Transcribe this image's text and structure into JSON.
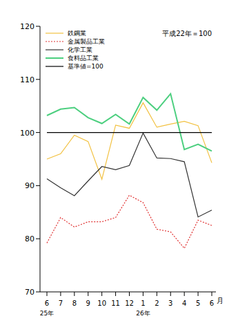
{
  "chart_data": {
    "type": "line",
    "subtitle": "平成22年＝100",
    "x_label": "月",
    "categories": [
      "6",
      "7",
      "8",
      "9",
      "10",
      "11",
      "12",
      "1",
      "2",
      "3",
      "4",
      "5",
      "6"
    ],
    "x_sublabels": [
      "25年",
      null,
      null,
      null,
      null,
      null,
      null,
      "26年",
      null,
      null,
      null,
      null,
      null
    ],
    "ylim": [
      70,
      120
    ],
    "yticks": [
      70,
      80,
      90,
      100,
      110,
      120
    ],
    "grid": false,
    "legend": "top-left",
    "series": [
      {
        "name": "鉄鋼業",
        "color": "#f2c140",
        "line_style": "solid",
        "values": [
          95.0,
          96.0,
          99.5,
          98.3,
          91.2,
          101.4,
          100.8,
          105.6,
          101.0,
          101.6,
          102.1,
          101.3,
          94.3
        ]
      },
      {
        "name": "金属製品工業",
        "color": "#e03030",
        "line_style": "dotted",
        "values": [
          79.2,
          84.0,
          82.2,
          83.2,
          83.2,
          84.0,
          88.2,
          86.8,
          81.8,
          81.3,
          78.2,
          83.5,
          82.5
        ]
      },
      {
        "name": "化学工業",
        "color": "#333333",
        "line_style": "solid",
        "values": [
          91.3,
          89.6,
          88.1,
          90.9,
          93.6,
          93.0,
          93.8,
          99.9,
          95.2,
          95.1,
          94.5,
          84.1,
          85.4
        ]
      },
      {
        "name": "食料品工業",
        "color": "#4ccf7f",
        "line_style": "solid",
        "values": [
          103.2,
          104.4,
          104.7,
          102.8,
          101.7,
          103.4,
          101.6,
          106.6,
          104.2,
          107.3,
          96.8,
          97.8,
          96.5
        ]
      },
      {
        "name": "基準値=100",
        "color": "#000000",
        "line_style": "solid",
        "values": [
          100,
          100,
          100,
          100,
          100,
          100,
          100,
          100,
          100,
          100,
          100,
          100,
          100
        ]
      }
    ]
  }
}
